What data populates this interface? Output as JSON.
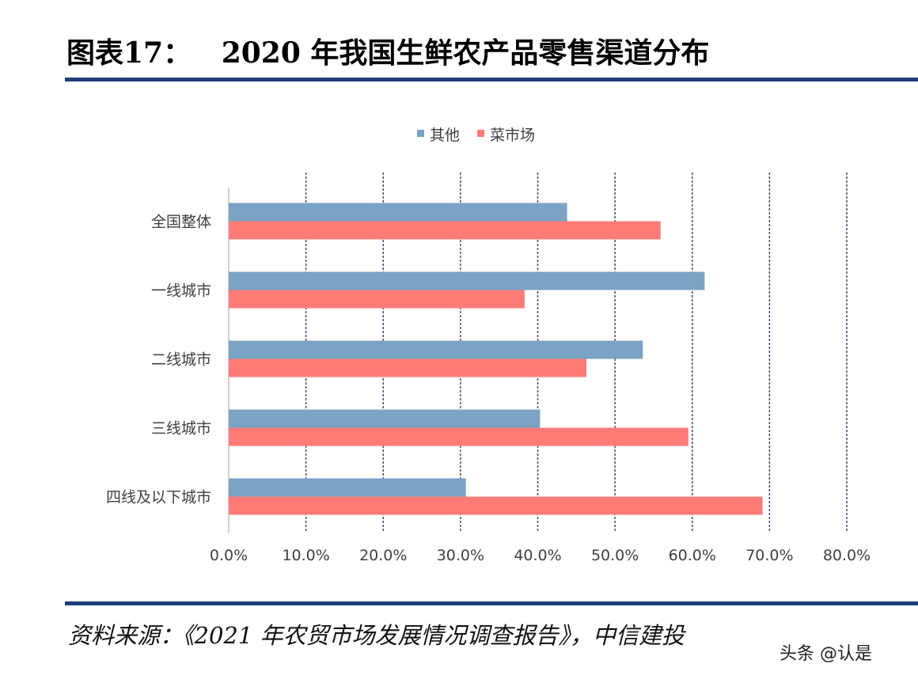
{
  "title": "图表17：   2020 年我国生鲜农产品零售渠道分布",
  "source": "资料来源：《2021 年农贸市场发展情况调查报告》，中信建投",
  "watermark": "头条 @认是",
  "chart_data": {
    "type": "bar",
    "orientation": "horizontal",
    "categories": [
      "全国整体",
      "一线城市",
      "二线城市",
      "三线城市",
      "四线及以下城市"
    ],
    "series": [
      {
        "name": "其他",
        "color": "#7aa3c4",
        "values": [
          43.8,
          61.6,
          53.6,
          40.3,
          30.7
        ]
      },
      {
        "name": "菜市场",
        "color": "#ff7b78",
        "values": [
          55.9,
          38.3,
          46.3,
          59.5,
          69.1
        ]
      }
    ],
    "xlim": [
      0,
      80
    ],
    "x_ticks": [
      "0.0%",
      "10.0%",
      "20.0%",
      "30.0%",
      "40.0%",
      "50.0%",
      "60.0%",
      "70.0%",
      "80.0%"
    ],
    "unit": "%",
    "grid": "vertical dashed",
    "legend": "top-center"
  }
}
